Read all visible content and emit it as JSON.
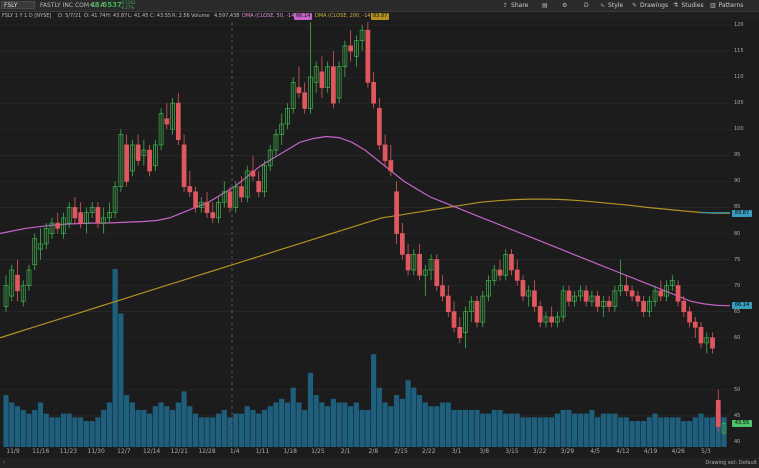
{
  "toolbar": {
    "symbol": "FSLY",
    "company_name": "FASTLY INC COM CL A",
    "last_price": "43.5537",
    "change_line1": "-0.1163",
    "change_line2": "-0.27%",
    "share_label": "Share",
    "style_label": "Style",
    "drawings_label": "Drawings",
    "studies_label": "Studies",
    "patterns_label": "Patterns"
  },
  "header": {
    "symbol_period": "FSLY 1 Y 1 D [NYSE]",
    "date": "D: 5/7/21",
    "open": "O: 41.74",
    "high": "H: 43.87",
    "low": "L: 41.45",
    "close": "C: 43.55",
    "range": "R: 2.56",
    "volume_label": "Volume",
    "volume_value": "4,597,438",
    "dma50_label": "DMA (CLOSE, 50, -14)",
    "dma50_value": "66.14",
    "dma200_label": "DMA (CLOSE, 200, -14)",
    "dma200_value": "83.87"
  },
  "price_axis": {
    "ticks": [
      "120",
      "115",
      "110",
      "105",
      "100",
      "95",
      "90",
      "85",
      "80",
      "75",
      "70",
      "65",
      "60",
      "50",
      "45",
      "40"
    ],
    "badges": [
      {
        "label": "83.87",
        "value": 83.87,
        "color": "#3a9dbb"
      },
      {
        "label": "66.14",
        "value": 66.14,
        "color": "#3a9dbb"
      },
      {
        "label": "43.55",
        "value": 43.55,
        "color": "#4fc26a"
      }
    ]
  },
  "date_axis": {
    "ticks": [
      "11/9",
      "11/16",
      "11/23",
      "11/30",
      "12/7",
      "12/14",
      "12/21",
      "12/28",
      "1/4",
      "1/11",
      "1/18",
      "1/25",
      "2/1",
      "2/8",
      "2/15",
      "2/22",
      "3/1",
      "3/8",
      "3/15",
      "3/22",
      "3/29",
      "4/5",
      "4/12",
      "4/19",
      "4/26",
      "5/3"
    ]
  },
  "footer": {
    "drawing_set": "Drawing set: Default"
  },
  "colors": {
    "up": "#3fb34f",
    "down": "#e0585f",
    "volume": "#1f5f7e",
    "dma50": "#c464c9",
    "dma200": "#b39024",
    "ma_line": "#2aa1b7"
  },
  "chart_data": {
    "type": "candlestick",
    "title": "FSLY 1 Y 1 D [NYSE]",
    "ylim": [
      40,
      122
    ],
    "candles": [
      {
        "date": "11/5",
        "o": 66,
        "h": 72,
        "l": 65,
        "c": 70
      },
      {
        "date": "11/6",
        "o": 68,
        "h": 74,
        "l": 67,
        "c": 73
      },
      {
        "date": "11/9",
        "o": 72,
        "h": 75,
        "l": 67,
        "c": 69
      },
      {
        "date": "11/10",
        "o": 67,
        "h": 71,
        "l": 66,
        "c": 70
      },
      {
        "date": "11/11",
        "o": 70,
        "h": 74,
        "l": 69,
        "c": 73
      },
      {
        "date": "11/12",
        "o": 74,
        "h": 80,
        "l": 73,
        "c": 79
      },
      {
        "date": "11/13",
        "o": 77,
        "h": 81,
        "l": 75,
        "c": 78
      },
      {
        "date": "11/16",
        "o": 78,
        "h": 82,
        "l": 77,
        "c": 81
      },
      {
        "date": "11/17",
        "o": 80,
        "h": 83,
        "l": 79,
        "c": 82
      },
      {
        "date": "11/18",
        "o": 82,
        "h": 84,
        "l": 80,
        "c": 81
      },
      {
        "date": "11/19",
        "o": 80,
        "h": 84,
        "l": 79,
        "c": 83
      },
      {
        "date": "11/20",
        "o": 82,
        "h": 86,
        "l": 81,
        "c": 85
      },
      {
        "date": "11/23",
        "o": 85,
        "h": 87,
        "l": 82,
        "c": 83
      },
      {
        "date": "11/24",
        "o": 84,
        "h": 86,
        "l": 81,
        "c": 82
      },
      {
        "date": "11/25",
        "o": 82,
        "h": 85,
        "l": 80,
        "c": 84
      },
      {
        "date": "11/27",
        "o": 84,
        "h": 86,
        "l": 83,
        "c": 85
      },
      {
        "date": "11/30",
        "o": 85,
        "h": 86,
        "l": 81,
        "c": 82
      },
      {
        "date": "12/1",
        "o": 82,
        "h": 85,
        "l": 80,
        "c": 83
      },
      {
        "date": "12/2",
        "o": 83,
        "h": 86,
        "l": 82,
        "c": 84
      },
      {
        "date": "12/3",
        "o": 84,
        "h": 90,
        "l": 83,
        "c": 89
      },
      {
        "date": "12/4",
        "o": 89,
        "h": 100,
        "l": 88,
        "c": 99
      },
      {
        "date": "12/7",
        "o": 97,
        "h": 99,
        "l": 89,
        "c": 90
      },
      {
        "date": "12/8",
        "o": 92,
        "h": 98,
        "l": 91,
        "c": 97
      },
      {
        "date": "12/9",
        "o": 97,
        "h": 99,
        "l": 93,
        "c": 94
      },
      {
        "date": "12/10",
        "o": 95,
        "h": 98,
        "l": 93,
        "c": 96
      },
      {
        "date": "12/11",
        "o": 96,
        "h": 97,
        "l": 91,
        "c": 92
      },
      {
        "date": "12/14",
        "o": 93,
        "h": 98,
        "l": 92,
        "c": 97
      },
      {
        "date": "12/15",
        "o": 97,
        "h": 104,
        "l": 96,
        "c": 103
      },
      {
        "date": "12/16",
        "o": 102,
        "h": 105,
        "l": 100,
        "c": 101
      },
      {
        "date": "12/17",
        "o": 100,
        "h": 106,
        "l": 99,
        "c": 105
      },
      {
        "date": "12/18",
        "o": 105,
        "h": 107,
        "l": 97,
        "c": 98
      },
      {
        "date": "12/21",
        "o": 97,
        "h": 99,
        "l": 88,
        "c": 89
      },
      {
        "date": "12/22",
        "o": 89,
        "h": 92,
        "l": 87,
        "c": 88
      },
      {
        "date": "12/23",
        "o": 88,
        "h": 89,
        "l": 84,
        "c": 85
      },
      {
        "date": "12/24",
        "o": 85,
        "h": 87,
        "l": 84,
        "c": 86
      },
      {
        "date": "12/28",
        "o": 86,
        "h": 88,
        "l": 83,
        "c": 84
      },
      {
        "date": "12/29",
        "o": 84,
        "h": 86,
        "l": 82,
        "c": 83
      },
      {
        "date": "12/30",
        "o": 83,
        "h": 87,
        "l": 82,
        "c": 86
      },
      {
        "date": "12/31",
        "o": 86,
        "h": 90,
        "l": 85,
        "c": 88
      },
      {
        "date": "1/4",
        "o": 88,
        "h": 89,
        "l": 84,
        "c": 85
      },
      {
        "date": "1/5",
        "o": 85,
        "h": 90,
        "l": 84,
        "c": 89
      },
      {
        "date": "1/6",
        "o": 89,
        "h": 91,
        "l": 86,
        "c": 87
      },
      {
        "date": "1/7",
        "o": 87,
        "h": 93,
        "l": 86,
        "c": 92
      },
      {
        "date": "1/8",
        "o": 92,
        "h": 95,
        "l": 90,
        "c": 91
      },
      {
        "date": "1/11",
        "o": 90,
        "h": 92,
        "l": 87,
        "c": 88
      },
      {
        "date": "1/12",
        "o": 88,
        "h": 94,
        "l": 87,
        "c": 93
      },
      {
        "date": "1/13",
        "o": 93,
        "h": 97,
        "l": 92,
        "c": 96
      },
      {
        "date": "1/14",
        "o": 96,
        "h": 100,
        "l": 95,
        "c": 99
      },
      {
        "date": "1/15",
        "o": 99,
        "h": 103,
        "l": 97,
        "c": 101
      },
      {
        "date": "1/19",
        "o": 101,
        "h": 105,
        "l": 100,
        "c": 104
      },
      {
        "date": "1/20",
        "o": 104,
        "h": 110,
        "l": 103,
        "c": 109
      },
      {
        "date": "1/21",
        "o": 108,
        "h": 112,
        "l": 106,
        "c": 107
      },
      {
        "date": "1/22",
        "o": 107,
        "h": 109,
        "l": 103,
        "c": 104
      },
      {
        "date": "1/25",
        "o": 104,
        "h": 122,
        "l": 103,
        "c": 110
      },
      {
        "date": "1/26",
        "o": 109,
        "h": 113,
        "l": 107,
        "c": 112
      },
      {
        "date": "1/27",
        "o": 111,
        "h": 114,
        "l": 106,
        "c": 108
      },
      {
        "date": "1/28",
        "o": 108,
        "h": 113,
        "l": 107,
        "c": 112
      },
      {
        "date": "1/29",
        "o": 112,
        "h": 115,
        "l": 104,
        "c": 105
      },
      {
        "date": "2/1",
        "o": 106,
        "h": 113,
        "l": 105,
        "c": 112
      },
      {
        "date": "2/2",
        "o": 112,
        "h": 117,
        "l": 110,
        "c": 116
      },
      {
        "date": "2/3",
        "o": 116,
        "h": 119,
        "l": 113,
        "c": 115
      },
      {
        "date": "2/4",
        "o": 114,
        "h": 118,
        "l": 112,
        "c": 117
      },
      {
        "date": "2/5",
        "o": 117,
        "h": 120,
        "l": 115,
        "c": 119
      },
      {
        "date": "2/8",
        "o": 119,
        "h": 121,
        "l": 108,
        "c": 109
      },
      {
        "date": "2/9",
        "o": 109,
        "h": 111,
        "l": 104,
        "c": 105
      },
      {
        "date": "2/10",
        "o": 104,
        "h": 106,
        "l": 96,
        "c": 97
      },
      {
        "date": "2/11",
        "o": 97,
        "h": 99,
        "l": 93,
        "c": 94
      },
      {
        "date": "2/12",
        "o": 94,
        "h": 97,
        "l": 91,
        "c": 92
      },
      {
        "date": "2/16",
        "o": 88,
        "h": 90,
        "l": 78,
        "c": 80
      },
      {
        "date": "2/17",
        "o": 80,
        "h": 82,
        "l": 75,
        "c": 76
      },
      {
        "date": "2/18",
        "o": 76,
        "h": 78,
        "l": 72,
        "c": 73
      },
      {
        "date": "2/19",
        "o": 73,
        "h": 77,
        "l": 72,
        "c": 76
      },
      {
        "date": "2/22",
        "o": 76,
        "h": 78,
        "l": 71,
        "c": 72
      },
      {
        "date": "2/23",
        "o": 72,
        "h": 74,
        "l": 68,
        "c": 73
      },
      {
        "date": "2/24",
        "o": 73,
        "h": 76,
        "l": 71,
        "c": 75
      },
      {
        "date": "2/25",
        "o": 75,
        "h": 76,
        "l": 69,
        "c": 70
      },
      {
        "date": "2/26",
        "o": 70,
        "h": 72,
        "l": 67,
        "c": 68
      },
      {
        "date": "3/1",
        "o": 68,
        "h": 70,
        "l": 64,
        "c": 65
      },
      {
        "date": "3/2",
        "o": 65,
        "h": 67,
        "l": 61,
        "c": 62
      },
      {
        "date": "3/3",
        "o": 62,
        "h": 64,
        "l": 59,
        "c": 60
      },
      {
        "date": "3/4",
        "o": 61,
        "h": 66,
        "l": 58,
        "c": 65
      },
      {
        "date": "3/5",
        "o": 65,
        "h": 68,
        "l": 63,
        "c": 67
      },
      {
        "date": "3/8",
        "o": 67,
        "h": 68,
        "l": 62,
        "c": 63
      },
      {
        "date": "3/9",
        "o": 63,
        "h": 69,
        "l": 62,
        "c": 68
      },
      {
        "date": "3/10",
        "o": 68,
        "h": 72,
        "l": 67,
        "c": 71
      },
      {
        "date": "3/11",
        "o": 71,
        "h": 74,
        "l": 70,
        "c": 73
      },
      {
        "date": "3/12",
        "o": 73,
        "h": 75,
        "l": 71,
        "c": 72
      },
      {
        "date": "3/15",
        "o": 72,
        "h": 77,
        "l": 71,
        "c": 76
      },
      {
        "date": "3/16",
        "o": 76,
        "h": 77,
        "l": 72,
        "c": 73
      },
      {
        "date": "3/17",
        "o": 73,
        "h": 75,
        "l": 70,
        "c": 71
      },
      {
        "date": "3/18",
        "o": 71,
        "h": 72,
        "l": 67,
        "c": 68
      },
      {
        "date": "3/19",
        "o": 68,
        "h": 70,
        "l": 66,
        "c": 69
      },
      {
        "date": "3/22",
        "o": 69,
        "h": 71,
        "l": 65,
        "c": 66
      },
      {
        "date": "3/23",
        "o": 66,
        "h": 67,
        "l": 62,
        "c": 63
      },
      {
        "date": "3/24",
        "o": 63,
        "h": 65,
        "l": 62,
        "c": 64
      },
      {
        "date": "3/25",
        "o": 64,
        "h": 66,
        "l": 62,
        "c": 63
      },
      {
        "date": "3/26",
        "o": 63,
        "h": 65,
        "l": 62,
        "c": 64
      },
      {
        "date": "3/29",
        "o": 64,
        "h": 70,
        "l": 63,
        "c": 69
      },
      {
        "date": "3/30",
        "o": 69,
        "h": 70,
        "l": 66,
        "c": 67
      },
      {
        "date": "3/31",
        "o": 67,
        "h": 69,
        "l": 66,
        "c": 68
      },
      {
        "date": "4/1",
        "o": 68,
        "h": 70,
        "l": 67,
        "c": 69
      },
      {
        "date": "4/5",
        "o": 69,
        "h": 70,
        "l": 66,
        "c": 67
      },
      {
        "date": "4/6",
        "o": 67,
        "h": 69,
        "l": 66,
        "c": 68
      },
      {
        "date": "4/7",
        "o": 68,
        "h": 69,
        "l": 65,
        "c": 66
      },
      {
        "date": "4/8",
        "o": 66,
        "h": 68,
        "l": 64,
        "c": 67
      },
      {
        "date": "4/9",
        "o": 67,
        "h": 68,
        "l": 65,
        "c": 66
      },
      {
        "date": "4/12",
        "o": 66,
        "h": 70,
        "l": 65,
        "c": 69
      },
      {
        "date": "4/13",
        "o": 69,
        "h": 75,
        "l": 68,
        "c": 70
      },
      {
        "date": "4/14",
        "o": 70,
        "h": 72,
        "l": 68,
        "c": 69
      },
      {
        "date": "4/15",
        "o": 69,
        "h": 70,
        "l": 67,
        "c": 68
      },
      {
        "date": "4/16",
        "o": 68,
        "h": 69,
        "l": 66,
        "c": 67
      },
      {
        "date": "4/19",
        "o": 67,
        "h": 68,
        "l": 64,
        "c": 65
      },
      {
        "date": "4/20",
        "o": 65,
        "h": 68,
        "l": 64,
        "c": 67
      },
      {
        "date": "4/21",
        "o": 67,
        "h": 70,
        "l": 66,
        "c": 69
      },
      {
        "date": "4/22",
        "o": 69,
        "h": 71,
        "l": 67,
        "c": 68
      },
      {
        "date": "4/23",
        "o": 68,
        "h": 71,
        "l": 67,
        "c": 70
      },
      {
        "date": "4/26",
        "o": 70,
        "h": 72,
        "l": 69,
        "c": 71
      },
      {
        "date": "4/27",
        "o": 70,
        "h": 71,
        "l": 66,
        "c": 67
      },
      {
        "date": "4/28",
        "o": 67,
        "h": 68,
        "l": 64,
        "c": 65
      },
      {
        "date": "4/29",
        "o": 65,
        "h": 66,
        "l": 62,
        "c": 63
      },
      {
        "date": "4/30",
        "o": 63,
        "h": 64,
        "l": 60,
        "c": 62
      },
      {
        "date": "5/3",
        "o": 62,
        "h": 63,
        "l": 58,
        "c": 59
      },
      {
        "date": "5/4",
        "o": 59,
        "h": 61,
        "l": 57,
        "c": 60
      },
      {
        "date": "5/5",
        "o": 60,
        "h": 61,
        "l": 57,
        "c": 58
      },
      {
        "date": "5/6",
        "o": 48,
        "h": 50,
        "l": 42,
        "c": 43
      },
      {
        "date": "5/7",
        "o": 41.74,
        "h": 43.87,
        "l": 41.45,
        "c": 43.55
      }
    ],
    "volume": [
      14,
      12,
      11,
      10,
      9,
      10,
      12,
      9,
      8,
      8,
      9,
      9,
      8,
      8,
      7,
      7,
      8,
      10,
      12,
      48,
      36,
      14,
      12,
      10,
      10,
      9,
      11,
      12,
      11,
      10,
      12,
      15,
      11,
      9,
      8,
      8,
      8,
      9,
      10,
      8,
      9,
      9,
      11,
      10,
      9,
      10,
      11,
      12,
      13,
      12,
      16,
      12,
      10,
      20,
      14,
      12,
      11,
      13,
      12,
      12,
      11,
      12,
      10,
      10,
      25,
      16,
      12,
      11,
      14,
      13,
      18,
      16,
      14,
      12,
      11,
      11,
      12,
      12,
      10,
      10,
      10,
      10,
      10,
      9,
      9,
      10,
      10,
      9,
      9,
      9,
      8,
      8,
      8,
      8,
      8,
      8,
      9,
      10,
      10,
      9,
      9,
      9,
      10,
      8,
      9,
      9,
      9,
      8,
      8,
      7,
      7,
      7,
      8,
      9,
      8,
      8,
      8,
      8,
      7,
      7,
      8,
      9,
      8,
      8,
      9,
      8,
      8,
      40,
      10
    ],
    "dma50": [
      80,
      80.5,
      81,
      81.3,
      81.6,
      81.8,
      81.9,
      82,
      82,
      82.1,
      82.2,
      82.3,
      82.5,
      83,
      84,
      85,
      86,
      87.5,
      89,
      91,
      93,
      94.5,
      96,
      97.5,
      98.2,
      98.6,
      98.4,
      97.5,
      96,
      94,
      92,
      90,
      88.5,
      87,
      86,
      85,
      84,
      83,
      82,
      81,
      80,
      79,
      78,
      77,
      76,
      75,
      74,
      73,
      72,
      71,
      70,
      69,
      68,
      67,
      66.5,
      66.2,
      66.14
    ],
    "dma200": [
      60,
      61,
      62,
      63,
      64,
      65,
      66,
      67,
      68,
      69,
      70,
      71,
      72,
      73,
      74,
      75,
      76,
      77,
      78,
      79,
      80,
      81,
      82,
      83,
      83.5,
      84,
      84.5,
      85,
      85.5,
      86,
      86.3,
      86.5,
      86.6,
      86.6,
      86.5,
      86.3,
      86,
      85.7,
      85.4,
      85,
      84.7,
      84.4,
      84.1,
      83.9,
      83.87
    ],
    "ma_line": [
      84,
      84,
      84,
      84,
      84
    ]
  }
}
